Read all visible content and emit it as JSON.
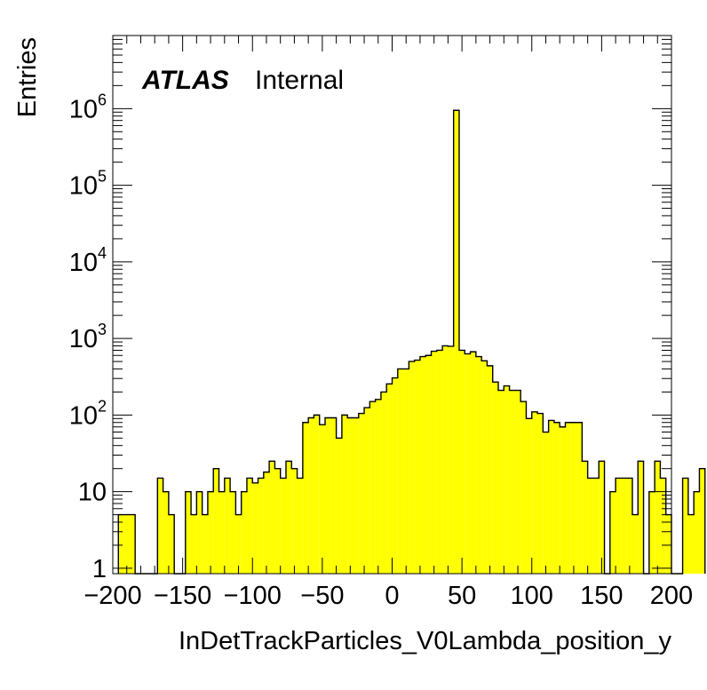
{
  "chart_data": {
    "type": "histogram",
    "xlabel": "InDetTrackParticles_V0Lambda_position_y",
    "ylabel": "Entries",
    "label_bold": "ATLAS",
    "label_normal": "Internal",
    "xlim": [
      -200,
      200
    ],
    "ylim": [
      0.85,
      9000000
    ],
    "log_y": true,
    "x_ticks": [
      -200,
      -150,
      -100,
      -50,
      0,
      50,
      100,
      150,
      200
    ],
    "x_tick_labels": [
      "−200",
      "−150",
      "−100",
      "−50",
      "0",
      "50",
      "100",
      "150",
      "200"
    ],
    "y_ticks": [
      {
        "value": 1,
        "base": "1",
        "exp": ""
      },
      {
        "value": 10,
        "base": "10",
        "exp": ""
      },
      {
        "value": 100,
        "base": "10",
        "exp": "2"
      },
      {
        "value": 1000,
        "base": "10",
        "exp": "3"
      },
      {
        "value": 10000,
        "base": "10",
        "exp": "4"
      },
      {
        "value": 100000,
        "base": "10",
        "exp": "5"
      },
      {
        "value": 1000000,
        "base": "10",
        "exp": "6"
      }
    ],
    "bin_width": 4,
    "fill_color": "#ffff00",
    "line_color": "#000000",
    "bin_edges_start": -196,
    "values": [
      5,
      5,
      5,
      0,
      0,
      0,
      0,
      15,
      10,
      5,
      0,
      0,
      10,
      5,
      10,
      5,
      10,
      20,
      10,
      15,
      10,
      5,
      10,
      15,
      13,
      15,
      18,
      25,
      20,
      15,
      25,
      20,
      15,
      80,
      92,
      100,
      75,
      92,
      92,
      50,
      100,
      92,
      92,
      105,
      125,
      150,
      160,
      200,
      255,
      305,
      400,
      400,
      500,
      520,
      580,
      600,
      680,
      700,
      800,
      790,
      950000,
      700,
      630,
      670,
      580,
      510,
      440,
      270,
      210,
      240,
      210,
      210,
      150,
      90,
      110,
      105,
      60,
      85,
      80,
      70,
      80,
      80,
      80,
      25,
      15,
      15,
      25,
      0,
      10,
      15,
      15,
      15,
      5,
      25,
      0,
      10,
      25,
      15,
      5,
      0,
      0,
      15,
      5,
      10,
      20
    ]
  }
}
